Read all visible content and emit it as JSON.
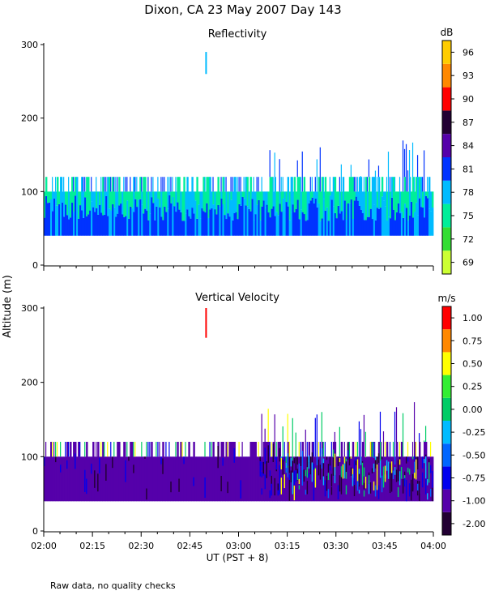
{
  "title": "Dixon, CA 23 May 2007  Day 143",
  "shared": {
    "ylabel": "Altitude (m)",
    "xlabel": "UT  (PST + 8)",
    "xticks": [
      "02:00",
      "02:15",
      "02:30",
      "02:45",
      "03:00",
      "03:15",
      "03:30",
      "03:45",
      "04:00"
    ],
    "footnote": "Raw data, no quality checks"
  },
  "chart_data": [
    {
      "type": "heatmap",
      "title": "Reflectivity",
      "colorbar": {
        "unit": "dB",
        "labels": [
          "69",
          "72",
          "75",
          "78",
          "81",
          "84",
          "87",
          "90",
          "93",
          "96"
        ],
        "colors": [
          "#ccff33",
          "#33dd33",
          "#00ee99",
          "#00bbff",
          "#0033ff",
          "#5500aa",
          "#220033",
          "#ff0000",
          "#ff8800",
          "#ffcc00"
        ]
      },
      "x_range": [
        "02:00",
        "04:00"
      ],
      "ylim": [
        0,
        300
      ],
      "yticks": [
        0,
        100,
        200,
        300
      ],
      "description_data": {
        "layers": [
          {
            "altitude_m": [
              40,
              60
            ],
            "dominant_dB": 81
          },
          {
            "altitude_m": [
              60,
              100
            ],
            "dominant_dB": 78
          },
          {
            "altitude_m": [
              100,
              120
            ],
            "dominant_dB": 75
          }
        ],
        "isolated_echo": {
          "time": "02:50",
          "altitude_m": [
            260,
            290
          ],
          "dB": 78
        },
        "max_echo_top_m": 180
      }
    },
    {
      "type": "heatmap",
      "title": "Vertical Velocity",
      "colorbar": {
        "unit": "m/s",
        "labels": [
          "-2.00",
          "-1.00",
          "-0.75",
          "-0.50",
          "-0.25",
          "0.00",
          "0.25",
          "0.50",
          "0.75",
          "1.00"
        ],
        "colors": [
          "#220033",
          "#5500aa",
          "#0000ee",
          "#0066ff",
          "#00bbff",
          "#00cc66",
          "#33ee33",
          "#ffff00",
          "#ff8800",
          "#ff0000"
        ]
      },
      "x_range": [
        "02:00",
        "04:00"
      ],
      "ylim": [
        0,
        300
      ],
      "yticks": [
        0,
        100,
        200,
        300
      ],
      "description_data": {
        "layers": [
          {
            "altitude_m": [
              40,
              100
            ],
            "dominant_ms": -1.0
          },
          {
            "altitude_m": [
              100,
              120
            ],
            "dominant_ms": -1.0
          }
        ],
        "isolated_echo": {
          "time": "02:50",
          "altitude_m": [
            260,
            300
          ],
          "ms": 1.0
        },
        "max_echo_top_m": 180
      }
    }
  ]
}
